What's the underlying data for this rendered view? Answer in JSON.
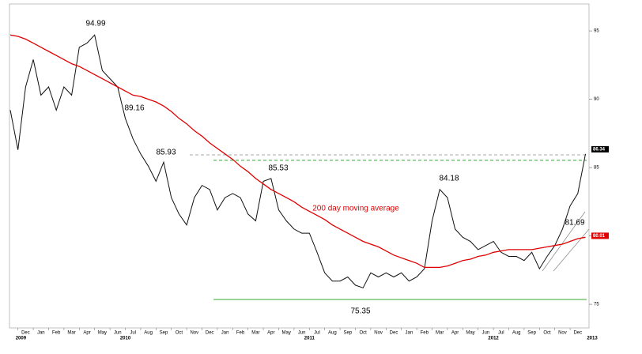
{
  "chart_data": {
    "type": "line",
    "categories": [
      null,
      null,
      "Dec",
      null,
      "Jan",
      null,
      "Feb",
      null,
      "Mar",
      null,
      "Apr",
      null,
      "May",
      null,
      "Jun",
      null,
      "Jul",
      null,
      "Aug",
      null,
      "Sep",
      null,
      "Oct",
      null,
      "Nov",
      null,
      "Dec",
      null,
      "Jan",
      null,
      "Feb",
      null,
      "Mar",
      null,
      "Apr",
      null,
      "May",
      null,
      "Jun",
      null,
      "Jul",
      null,
      "Aug",
      null,
      "Sep",
      null,
      "Oct",
      null,
      "Nov",
      null,
      "Dec",
      null,
      "Jan",
      null,
      "Feb",
      null,
      "Mar",
      null,
      "Apr",
      null,
      "May",
      null,
      "Jun",
      null,
      "Jul",
      null,
      "Aug",
      null,
      "Sep",
      null,
      "Oct",
      null,
      "Nov",
      null,
      "Dec",
      null
    ],
    "years": [
      "2009",
      "2010",
      "2011",
      "2012",
      "2013"
    ],
    "series": [
      {
        "color": "#111111",
        "values": [
          89.2,
          86.3,
          90.9,
          92.9,
          90.3,
          90.9,
          89.2,
          90.9,
          90.3,
          93.8,
          94.1,
          94.7,
          92.1,
          91.5,
          90.9,
          88.6,
          87.1,
          86.0,
          85.1,
          84.0,
          85.4,
          82.8,
          81.6,
          80.8,
          82.8,
          83.7,
          83.4,
          81.9,
          82.8,
          83.1,
          82.8,
          81.6,
          81.1,
          84.0,
          84.2,
          81.9,
          81.1,
          80.5,
          80.2,
          80.2,
          78.8,
          77.3,
          76.7,
          76.7,
          77.0,
          76.4,
          76.2,
          77.3,
          77.0,
          77.3,
          77.0,
          77.3,
          76.7,
          77.0,
          77.6,
          81.1,
          83.4,
          82.8,
          80.5,
          79.9,
          79.6,
          79.0,
          79.3,
          79.6,
          78.8,
          78.5,
          78.5,
          78.2,
          78.8,
          77.6,
          78.5,
          79.3,
          80.5,
          82.2,
          83.1,
          86.0
        ]
      },
      {
        "color": "#e00000",
        "values": [
          94.7,
          94.6,
          94.4,
          94.1,
          93.8,
          93.5,
          93.2,
          92.9,
          92.6,
          92.4,
          92.1,
          91.8,
          91.5,
          91.2,
          90.9,
          90.6,
          90.3,
          90.2,
          90.0,
          89.8,
          89.5,
          89.1,
          88.6,
          88.2,
          87.7,
          87.3,
          86.8,
          86.4,
          86.0,
          85.6,
          85.1,
          84.7,
          84.2,
          83.8,
          83.4,
          83.1,
          82.8,
          82.5,
          82.1,
          81.8,
          81.5,
          81.2,
          80.8,
          80.5,
          80.2,
          79.9,
          79.6,
          79.4,
          79.2,
          78.9,
          78.6,
          78.4,
          78.2,
          78.0,
          77.7,
          77.7,
          77.7,
          77.8,
          78.0,
          78.2,
          78.3,
          78.5,
          78.6,
          78.8,
          78.9,
          79.0,
          79.0,
          79.0,
          79.0,
          79.1,
          79.2,
          79.3,
          79.4,
          79.6,
          79.8,
          79.9
        ]
      }
    ],
    "ylim": [
      73.27,
      96.97
    ],
    "yticks": [
      75,
      80,
      85,
      90,
      95
    ],
    "reference_lines": [
      {
        "value": 85.93,
        "color": "#aaaaaa",
        "style": "dashed"
      },
      {
        "value": 85.53,
        "color": "#33aa33",
        "style": "dashed"
      },
      {
        "value": 75.35,
        "color": "#33aa33",
        "style": "solid"
      }
    ],
    "price_tags": [
      {
        "value": 86.34,
        "color": "#000000"
      },
      {
        "value": 80.01,
        "color": "#e00000"
      }
    ],
    "annotations": [
      {
        "text": "94.99",
        "color": "#000000"
      },
      {
        "text": "89.16",
        "color": "#000000"
      },
      {
        "text": "85.93",
        "color": "#000000"
      },
      {
        "text": "85.53",
        "color": "#000000"
      },
      {
        "text": "84.18",
        "color": "#000000"
      },
      {
        "text": "81.69",
        "color": "#000000"
      },
      {
        "text": "75.35",
        "color": "#000000"
      },
      {
        "text": "200 day moving average",
        "color": "#e00000"
      }
    ]
  }
}
